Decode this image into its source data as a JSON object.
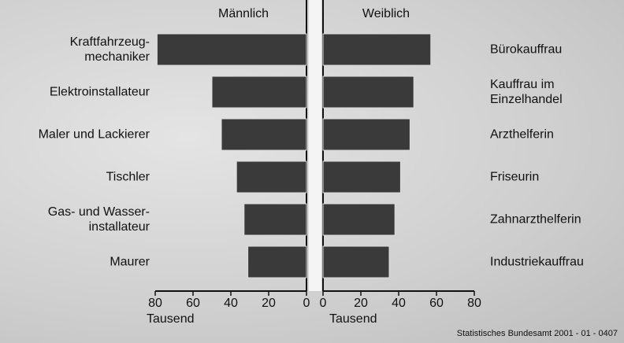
{
  "chart_data": [
    {
      "type": "bar",
      "orientation": "horizontal",
      "reversed": true,
      "title": "Männlich",
      "categories": [
        "Kraftfahrzeug-\nmechaniker",
        "Elektroinstallateur",
        "Maler und Lackierer",
        "Tischler",
        "Gas- und Wasser-\ninstallateur",
        "Maurer"
      ],
      "values": [
        79,
        50,
        45,
        37,
        33,
        31
      ],
      "color": "#3a3a3a",
      "xlim": [
        0,
        80
      ],
      "xticks": [
        0,
        20,
        40,
        60,
        80
      ],
      "xlabel": "Tausend"
    },
    {
      "type": "bar",
      "orientation": "horizontal",
      "reversed": false,
      "title": "Weiblich",
      "categories": [
        "Bürokauffrau",
        "Kauffrau im\nEinzelhandel",
        "Arzthelferin",
        "Friseurin",
        "Zahnarzthelferin",
        "Industriekauffrau"
      ],
      "values": [
        57,
        48,
        46,
        41,
        38,
        35
      ],
      "color": "#3a3a3a",
      "xlim": [
        0,
        80
      ],
      "xticks": [
        0,
        20,
        40,
        60,
        80
      ],
      "xlabel": "Tausend"
    }
  ],
  "source": "Statistisches Bundesamt 2001 - 01 - 0407"
}
